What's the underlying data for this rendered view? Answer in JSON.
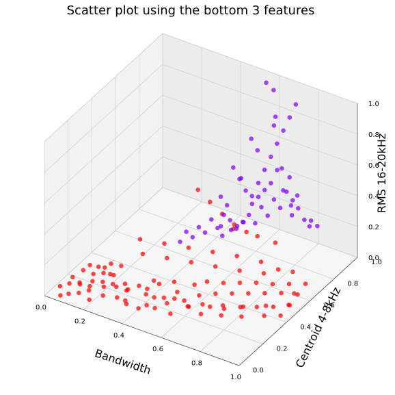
{
  "chart_data": {
    "type": "scatter",
    "title": "Scatter plot using the bottom 3 features",
    "xlabel": "Bandwidth",
    "ylabel": "Centroid 4-8kHz",
    "zlabel": "RMS 16-20kHz",
    "xlim": [
      0.0,
      1.0
    ],
    "ylim": [
      0.0,
      1.0
    ],
    "zlim": [
      0.0,
      1.0
    ],
    "x_ticks": [
      "0.0",
      "0.2",
      "0.4",
      "0.6",
      "0.8",
      "1.0"
    ],
    "y_ticks": [
      "0.0",
      "0.2",
      "0.4",
      "0.6",
      "0.8",
      "1.0"
    ],
    "z_ticks": [
      "0.0",
      "0.2",
      "0.4",
      "0.6",
      "0.8",
      "1.0"
    ],
    "grid": true,
    "projection": "3d",
    "series": [
      {
        "color": "#ff0000",
        "points": [
          [
            0.05,
            0.05,
            0.05
          ],
          [
            0.08,
            0.08,
            0.06
          ],
          [
            0.1,
            0.04,
            0.03
          ],
          [
            0.12,
            0.1,
            0.07
          ],
          [
            0.14,
            0.06,
            0.04
          ],
          [
            0.16,
            0.12,
            0.05
          ],
          [
            0.18,
            0.08,
            0.06
          ],
          [
            0.2,
            0.05,
            0.03
          ],
          [
            0.22,
            0.14,
            0.06
          ],
          [
            0.24,
            0.1,
            0.04
          ],
          [
            0.06,
            0.14,
            0.05
          ],
          [
            0.09,
            0.18,
            0.08
          ],
          [
            0.11,
            0.12,
            0.04
          ],
          [
            0.13,
            0.2,
            0.06
          ],
          [
            0.15,
            0.16,
            0.05
          ],
          [
            0.17,
            0.22,
            0.07
          ],
          [
            0.19,
            0.18,
            0.05
          ],
          [
            0.21,
            0.24,
            0.06
          ],
          [
            0.23,
            0.2,
            0.04
          ],
          [
            0.26,
            0.18,
            0.05
          ],
          [
            0.07,
            0.02,
            0.02
          ],
          [
            0.1,
            0.22,
            0.09
          ],
          [
            0.12,
            0.26,
            0.06
          ],
          [
            0.14,
            0.28,
            0.05
          ],
          [
            0.16,
            0.3,
            0.07
          ],
          [
            0.18,
            0.26,
            0.04
          ],
          [
            0.2,
            0.32,
            0.06
          ],
          [
            0.28,
            0.22,
            0.05
          ],
          [
            0.3,
            0.12,
            0.04
          ],
          [
            0.32,
            0.18,
            0.06
          ],
          [
            0.34,
            0.24,
            0.05
          ],
          [
            0.36,
            0.1,
            0.04
          ],
          [
            0.38,
            0.3,
            0.06
          ],
          [
            0.4,
            0.2,
            0.05
          ],
          [
            0.42,
            0.28,
            0.07
          ],
          [
            0.44,
            0.14,
            0.04
          ],
          [
            0.46,
            0.34,
            0.06
          ],
          [
            0.48,
            0.22,
            0.05
          ],
          [
            0.5,
            0.3,
            0.04
          ],
          [
            0.52,
            0.18,
            0.06
          ],
          [
            0.54,
            0.38,
            0.05
          ],
          [
            0.56,
            0.26,
            0.04
          ],
          [
            0.58,
            0.42,
            0.06
          ],
          [
            0.6,
            0.32,
            0.05
          ],
          [
            0.62,
            0.2,
            0.07
          ],
          [
            0.64,
            0.46,
            0.05
          ],
          [
            0.66,
            0.36,
            0.06
          ],
          [
            0.68,
            0.28,
            0.04
          ],
          [
            0.7,
            0.5,
            0.05
          ],
          [
            0.72,
            0.4,
            0.06
          ],
          [
            0.74,
            0.3,
            0.04
          ],
          [
            0.76,
            0.54,
            0.05
          ],
          [
            0.78,
            0.44,
            0.06
          ],
          [
            0.8,
            0.34,
            0.05
          ],
          [
            0.82,
            0.58,
            0.04
          ],
          [
            0.84,
            0.48,
            0.06
          ],
          [
            0.86,
            0.38,
            0.05
          ],
          [
            0.88,
            0.62,
            0.04
          ],
          [
            0.9,
            0.52,
            0.06
          ],
          [
            0.92,
            0.42,
            0.05
          ],
          [
            0.94,
            0.66,
            0.04
          ],
          [
            0.96,
            0.56,
            0.05
          ],
          [
            0.98,
            0.46,
            0.06
          ],
          [
            0.85,
            0.7,
            0.05
          ],
          [
            0.8,
            0.66,
            0.07
          ],
          [
            0.75,
            0.62,
            0.05
          ],
          [
            0.7,
            0.68,
            0.06
          ],
          [
            0.65,
            0.58,
            0.05
          ],
          [
            0.6,
            0.64,
            0.08
          ],
          [
            0.55,
            0.54,
            0.06
          ],
          [
            0.5,
            0.6,
            0.09
          ],
          [
            0.45,
            0.5,
            0.07
          ],
          [
            0.4,
            0.56,
            0.1
          ],
          [
            0.35,
            0.46,
            0.08
          ],
          [
            0.3,
            0.52,
            0.11
          ],
          [
            0.25,
            0.42,
            0.09
          ],
          [
            0.2,
            0.48,
            0.12
          ],
          [
            0.6,
            0.72,
            0.18
          ],
          [
            0.55,
            0.7,
            0.22
          ],
          [
            0.5,
            0.68,
            0.28
          ],
          [
            0.45,
            0.66,
            0.35
          ],
          [
            0.4,
            0.64,
            0.42
          ],
          [
            0.52,
            0.74,
            0.15
          ],
          [
            0.62,
            0.78,
            0.12
          ],
          [
            0.7,
            0.8,
            0.1
          ],
          [
            0.3,
            0.2,
            0.03
          ],
          [
            0.33,
            0.14,
            0.02
          ],
          [
            0.37,
            0.26,
            0.03
          ],
          [
            0.41,
            0.12,
            0.02
          ],
          [
            0.43,
            0.22,
            0.03
          ],
          [
            0.47,
            0.16,
            0.02
          ],
          [
            0.51,
            0.26,
            0.03
          ],
          [
            0.55,
            0.16,
            0.02
          ],
          [
            0.59,
            0.24,
            0.03
          ],
          [
            0.63,
            0.3,
            0.02
          ],
          [
            0.67,
            0.22,
            0.03
          ],
          [
            0.71,
            0.34,
            0.02
          ],
          [
            0.75,
            0.26,
            0.03
          ],
          [
            0.79,
            0.38,
            0.02
          ],
          [
            0.83,
            0.3,
            0.03
          ],
          [
            0.87,
            0.44,
            0.02
          ],
          [
            0.91,
            0.36,
            0.03
          ],
          [
            0.95,
            0.5,
            0.02
          ],
          [
            0.97,
            0.4,
            0.03
          ],
          [
            0.93,
            0.58,
            0.03
          ]
        ]
      },
      {
        "color": "#8000ff",
        "points": [
          [
            0.5,
            0.8,
            0.1
          ],
          [
            0.52,
            0.82,
            0.14
          ],
          [
            0.54,
            0.84,
            0.18
          ],
          [
            0.56,
            0.86,
            0.12
          ],
          [
            0.58,
            0.88,
            0.22
          ],
          [
            0.48,
            0.78,
            0.16
          ],
          [
            0.46,
            0.76,
            0.2
          ],
          [
            0.44,
            0.74,
            0.12
          ],
          [
            0.42,
            0.72,
            0.18
          ],
          [
            0.6,
            0.9,
            0.16
          ],
          [
            0.62,
            0.92,
            0.26
          ],
          [
            0.64,
            0.94,
            0.2
          ],
          [
            0.66,
            0.96,
            0.3
          ],
          [
            0.68,
            0.98,
            0.24
          ],
          [
            0.7,
            0.94,
            0.18
          ],
          [
            0.55,
            0.85,
            0.3
          ],
          [
            0.57,
            0.87,
            0.38
          ],
          [
            0.59,
            0.89,
            0.46
          ],
          [
            0.61,
            0.91,
            0.54
          ],
          [
            0.63,
            0.93,
            0.62
          ],
          [
            0.65,
            0.95,
            0.7
          ],
          [
            0.67,
            0.97,
            0.78
          ],
          [
            0.69,
            0.99,
            0.86
          ],
          [
            0.6,
            0.95,
            0.94
          ],
          [
            0.58,
            0.92,
            1.0
          ],
          [
            0.53,
            0.83,
            0.34
          ],
          [
            0.51,
            0.81,
            0.42
          ],
          [
            0.49,
            0.79,
            0.5
          ],
          [
            0.47,
            0.77,
            0.26
          ],
          [
            0.45,
            0.75,
            0.32
          ],
          [
            0.72,
            0.96,
            0.22
          ],
          [
            0.74,
            0.98,
            0.14
          ],
          [
            0.76,
            0.99,
            0.1
          ],
          [
            0.78,
            0.97,
            0.16
          ],
          [
            0.8,
            0.99,
            0.12
          ],
          [
            0.4,
            0.7,
            0.1
          ],
          [
            0.38,
            0.68,
            0.14
          ],
          [
            0.36,
            0.66,
            0.08
          ],
          [
            0.34,
            0.64,
            0.12
          ],
          [
            0.32,
            0.62,
            0.06
          ],
          [
            0.56,
            0.88,
            0.58
          ],
          [
            0.54,
            0.86,
            0.66
          ],
          [
            0.62,
            0.92,
            0.74
          ],
          [
            0.64,
            0.9,
            0.82
          ],
          [
            0.5,
            0.84,
            0.4
          ],
          [
            0.66,
            0.92,
            0.48
          ],
          [
            0.68,
            0.9,
            0.36
          ],
          [
            0.7,
            0.92,
            0.44
          ],
          [
            0.72,
            0.9,
            0.28
          ],
          [
            0.74,
            0.92,
            0.34
          ],
          [
            0.52,
            0.9,
            0.2
          ],
          [
            0.54,
            0.92,
            0.24
          ],
          [
            0.56,
            0.94,
            0.28
          ],
          [
            0.58,
            0.96,
            0.32
          ],
          [
            0.6,
            0.98,
            0.4
          ],
          [
            0.46,
            0.82,
            0.06
          ],
          [
            0.48,
            0.84,
            0.08
          ],
          [
            0.5,
            0.86,
            0.1
          ],
          [
            0.42,
            0.8,
            0.08
          ],
          [
            0.44,
            0.78,
            0.04
          ]
        ]
      }
    ]
  }
}
